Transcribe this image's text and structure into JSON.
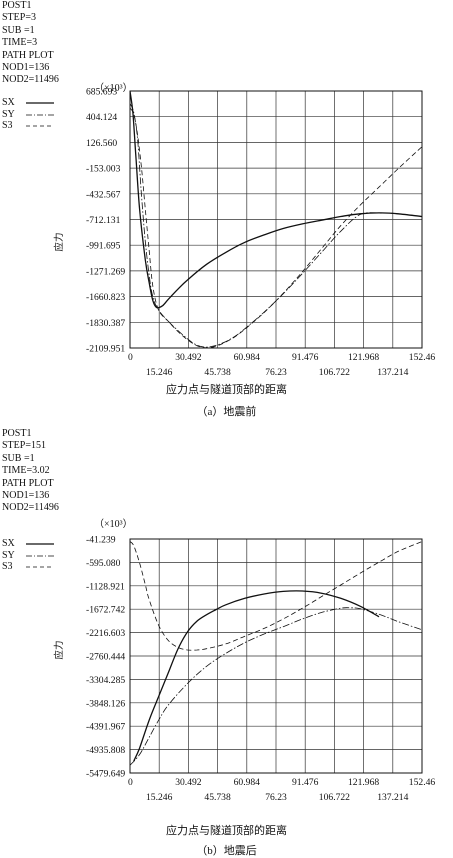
{
  "panels": [
    {
      "info_lines": [
        "POST1",
        "STEP=3",
        "SUB =1",
        "TIME=3",
        "PATH PLOT",
        "NOD1=136",
        "NOD2=11496"
      ],
      "multiplier": "（×10³）",
      "xlabel": "应力点与隧道顶部的距离",
      "ylabel": "应力",
      "caption": "（a）地震前",
      "legend": [
        {
          "name": "SX",
          "style": "solid"
        },
        {
          "name": "SY",
          "style": "dashdot"
        },
        {
          "name": "S3",
          "style": "dashed"
        }
      ]
    },
    {
      "info_lines": [
        "POST1",
        "STEP=151",
        "SUB =1",
        "TIME=3.02",
        "PATH PLOT",
        "NOD1=136",
        "NOD2=11496"
      ],
      "multiplier": "（×10³）",
      "xlabel": "应力点与隧道顶部的距离",
      "ylabel": "应力",
      "caption": "（b）地震后",
      "legend": [
        {
          "name": "SX",
          "style": "solid"
        },
        {
          "name": "SY",
          "style": "dashdot"
        },
        {
          "name": "S3",
          "style": "dashed"
        }
      ]
    }
  ],
  "chart_data": [
    {
      "type": "line",
      "xlabel": "应力点与隧道顶部的距离",
      "ylabel": "应力",
      "xlim": [
        0,
        152.46
      ],
      "ylim": [
        -2109.951,
        685.693
      ],
      "x_ticks": [
        "0",
        "15.246",
        "30.492",
        "45.738",
        "60.984",
        "76.23",
        "91.476",
        "106.722",
        "121.968",
        "137.214",
        "152.46"
      ],
      "y_ticks": [
        "685.693",
        "404.124",
        "126.560",
        "-153.003",
        "-432.567",
        "-712.131",
        "-991.695",
        "-1271.269",
        "-1660.823",
        "-1830.387",
        "-2109.951"
      ],
      "grid": true,
      "legend_position": "top-left",
      "series": [
        {
          "name": "SX",
          "style": "solid",
          "x": [
            0,
            1.5,
            3,
            5,
            8,
            10,
            12,
            14,
            17,
            20,
            25,
            30,
            40,
            50,
            60,
            70,
            80,
            90,
            100,
            110,
            120,
            130,
            140,
            152.46
          ],
          "y": [
            685,
            450,
            0,
            -600,
            -1150,
            -1400,
            -1600,
            -1670,
            -1650,
            -1580,
            -1470,
            -1370,
            -1200,
            -1070,
            -960,
            -880,
            -810,
            -760,
            -720,
            -680,
            -650,
            -640,
            -650,
            -680
          ]
        },
        {
          "name": "SY",
          "style": "dashdot",
          "x": [
            0,
            2,
            4,
            6,
            8,
            10,
            12,
            15,
            20,
            25,
            30,
            35,
            40,
            45,
            50,
            55,
            60,
            70,
            80,
            90,
            100,
            110,
            120,
            130,
            140,
            152.46
          ],
          "y": [
            550,
            450,
            150,
            -450,
            -950,
            -1320,
            -1560,
            -1700,
            -1820,
            -1920,
            -2010,
            -2080,
            -2100,
            -2080,
            -2040,
            -1980,
            -1900,
            -1720,
            -1520,
            -1300,
            -1070,
            -840,
            -660,
            -640,
            -650,
            -680
          ]
        },
        {
          "name": "S3",
          "style": "dashed",
          "x": [
            0,
            2,
            4,
            6,
            8,
            10,
            12,
            15,
            20,
            25,
            30,
            35,
            40,
            45,
            50,
            55,
            60,
            70,
            80,
            90,
            100,
            110,
            120,
            130,
            140,
            152.46
          ],
          "y": [
            500,
            430,
            200,
            -150,
            -600,
            -1050,
            -1450,
            -1700,
            -1820,
            -1930,
            -2020,
            -2085,
            -2108,
            -2090,
            -2045,
            -1985,
            -1905,
            -1725,
            -1515,
            -1280,
            -1030,
            -780,
            -560,
            -360,
            -160,
            80
          ]
        }
      ]
    },
    {
      "type": "line",
      "xlabel": "应力点与隧道顶部的距离",
      "ylabel": "应力",
      "xlim": [
        0,
        152.46
      ],
      "ylim": [
        -5479.649,
        -41.239
      ],
      "x_ticks": [
        "0",
        "15.246",
        "30.492",
        "45.738",
        "60.984",
        "76.23",
        "91.476",
        "106.722",
        "121.968",
        "137.214",
        "152.46"
      ],
      "y_ticks": [
        "-41.239",
        "-595.080",
        "-1128.921",
        "-1672.742",
        "-2216.603",
        "-2760.444",
        "-3304.285",
        "-3848.126",
        "-4391.967",
        "-4935.808",
        "-5479.649"
      ],
      "grid": true,
      "legend_position": "top-left",
      "series": [
        {
          "name": "SX",
          "style": "solid",
          "x": [
            2,
            5,
            10,
            15,
            20,
            25,
            30,
            35,
            40,
            45,
            50,
            60,
            70,
            80,
            90,
            100,
            110,
            120,
            130
          ],
          "y": [
            -5200,
            -4900,
            -4250,
            -3700,
            -3150,
            -2600,
            -2200,
            -1950,
            -1800,
            -1680,
            -1570,
            -1420,
            -1320,
            -1260,
            -1250,
            -1300,
            -1420,
            -1600,
            -1850
          ]
        },
        {
          "name": "SY",
          "style": "dashdot",
          "x": [
            0,
            5,
            10,
            15,
            20,
            30,
            40,
            50,
            60,
            70,
            80,
            90,
            100,
            110,
            115,
            120,
            130,
            140,
            152.46
          ],
          "y": [
            -5300,
            -5050,
            -4650,
            -4250,
            -3900,
            -3400,
            -3000,
            -2700,
            -2450,
            -2250,
            -2080,
            -1900,
            -1750,
            -1650,
            -1640,
            -1660,
            -1790,
            -1960,
            -2150
          ]
        },
        {
          "name": "S3",
          "style": "dashed",
          "x": [
            0,
            2,
            5,
            8,
            10,
            15,
            20,
            25,
            30,
            35,
            40,
            50,
            60,
            70,
            80,
            90,
            100,
            110,
            120,
            130,
            140,
            152.46
          ],
          "y": [
            -100,
            -200,
            -600,
            -1100,
            -1450,
            -2050,
            -2400,
            -2560,
            -2620,
            -2620,
            -2590,
            -2480,
            -2300,
            -2120,
            -1900,
            -1650,
            -1380,
            -1110,
            -840,
            -580,
            -330,
            -100
          ]
        }
      ]
    }
  ]
}
